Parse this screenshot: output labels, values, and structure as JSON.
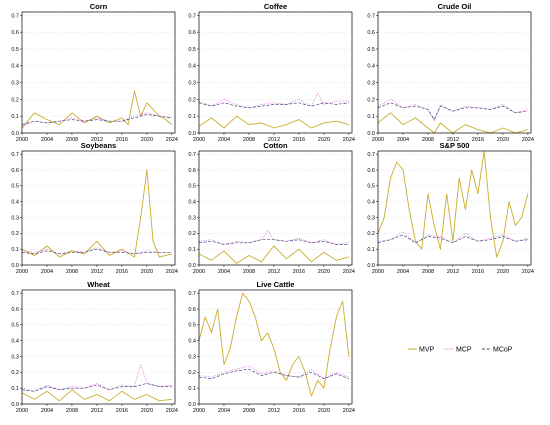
{
  "chart_data": {
    "type": "line",
    "x_ticks": [
      "2000",
      "2004",
      "2008",
      "2012",
      "2016",
      "2020",
      "2024"
    ],
    "xlim": [
      2000,
      2024.5
    ],
    "y_ticks": [
      "0.0",
      "0.1",
      "0.2",
      "0.3",
      "0.4",
      "0.5",
      "0.6",
      "0.7"
    ],
    "ylim": [
      0,
      0.72
    ],
    "grid": true,
    "legend_position": "bottom-right",
    "legend": [
      {
        "key": "mvp",
        "name": "MVP",
        "color": "#c9ad2c",
        "style": "solid"
      },
      {
        "key": "mcp",
        "name": "MCP",
        "color": "#d65fd6",
        "style": "dotted"
      },
      {
        "key": "mcop",
        "name": "MCoP",
        "color": "#4a4a7a",
        "style": "dashed"
      }
    ],
    "panels": [
      {
        "title": "Corn",
        "series": {
          "mvp": {
            "x": [
              2000,
              2002,
              2004,
              2006,
              2008,
              2010,
              2012,
              2014,
              2016,
              2017,
              2018,
              2019,
              2020,
              2022,
              2023,
              2024
            ],
            "y": [
              0.03,
              0.12,
              0.08,
              0.05,
              0.12,
              0.06,
              0.1,
              0.06,
              0.09,
              0.05,
              0.25,
              0.1,
              0.18,
              0.1,
              0.08,
              0.05
            ]
          },
          "mcp": {
            "x": [
              2000,
              2002,
              2004,
              2006,
              2008,
              2010,
              2012,
              2014,
              2016,
              2018,
              2020,
              2022,
              2024
            ],
            "y": [
              0.04,
              0.07,
              0.06,
              0.07,
              0.09,
              0.07,
              0.09,
              0.07,
              0.07,
              0.1,
              0.12,
              0.1,
              0.09
            ]
          },
          "mcop": {
            "x": [
              2000,
              2002,
              2004,
              2006,
              2008,
              2010,
              2012,
              2014,
              2016,
              2018,
              2020,
              2022,
              2024
            ],
            "y": [
              0.05,
              0.07,
              0.06,
              0.07,
              0.08,
              0.07,
              0.08,
              0.07,
              0.07,
              0.09,
              0.11,
              0.1,
              0.09
            ]
          }
        }
      },
      {
        "title": "Coffee",
        "series": {
          "mvp": {
            "x": [
              2000,
              2002,
              2004,
              2006,
              2008,
              2010,
              2012,
              2014,
              2016,
              2018,
              2020,
              2022,
              2024
            ],
            "y": [
              0.04,
              0.09,
              0.03,
              0.1,
              0.05,
              0.06,
              0.03,
              0.05,
              0.08,
              0.03,
              0.06,
              0.07,
              0.05
            ]
          },
          "mcp": {
            "x": [
              2000,
              2002,
              2004,
              2006,
              2008,
              2010,
              2012,
              2014,
              2016,
              2018,
              2019,
              2020,
              2022,
              2024
            ],
            "y": [
              0.19,
              0.16,
              0.2,
              0.17,
              0.15,
              0.17,
              0.18,
              0.17,
              0.2,
              0.16,
              0.24,
              0.17,
              0.19,
              0.19
            ]
          },
          "mcop": {
            "x": [
              2000,
              2002,
              2004,
              2006,
              2008,
              2010,
              2012,
              2014,
              2016,
              2018,
              2020,
              2022,
              2024
            ],
            "y": [
              0.18,
              0.16,
              0.18,
              0.16,
              0.15,
              0.16,
              0.17,
              0.17,
              0.18,
              0.16,
              0.18,
              0.17,
              0.18
            ]
          }
        }
      },
      {
        "title": "Crude Oil",
        "series": {
          "mvp": {
            "x": [
              2000,
              2002,
              2004,
              2006,
              2008,
              2009,
              2010,
              2012,
              2014,
              2016,
              2018,
              2020,
              2022,
              2024
            ],
            "y": [
              0.06,
              0.12,
              0.05,
              0.09,
              0.03,
              0.0,
              0.06,
              0.0,
              0.05,
              0.02,
              0.0,
              0.03,
              0.0,
              0.02
            ]
          },
          "mcp": {
            "x": [
              2000,
              2002,
              2004,
              2006,
              2008,
              2009,
              2010,
              2012,
              2014,
              2016,
              2018,
              2020,
              2022,
              2024
            ],
            "y": [
              0.16,
              0.2,
              0.15,
              0.17,
              0.14,
              0.07,
              0.17,
              0.13,
              0.16,
              0.15,
              0.14,
              0.17,
              0.12,
              0.14
            ]
          },
          "mcop": {
            "x": [
              2000,
              2002,
              2004,
              2006,
              2008,
              2009,
              2010,
              2012,
              2014,
              2016,
              2018,
              2020,
              2022,
              2024
            ],
            "y": [
              0.15,
              0.18,
              0.15,
              0.16,
              0.14,
              0.08,
              0.16,
              0.13,
              0.15,
              0.15,
              0.14,
              0.16,
              0.12,
              0.13
            ]
          }
        }
      },
      {
        "title": "Soybeans",
        "series": {
          "mvp": {
            "x": [
              2000,
              2002,
              2004,
              2006,
              2008,
              2010,
              2012,
              2014,
              2016,
              2018,
              2019,
              2020,
              2021,
              2022,
              2024
            ],
            "y": [
              0.1,
              0.06,
              0.12,
              0.05,
              0.09,
              0.07,
              0.15,
              0.06,
              0.1,
              0.05,
              0.3,
              0.6,
              0.15,
              0.05,
              0.07
            ]
          },
          "mcp": {
            "x": [
              2000,
              2002,
              2004,
              2006,
              2008,
              2010,
              2012,
              2014,
              2016,
              2018,
              2020,
              2022,
              2024
            ],
            "y": [
              0.09,
              0.08,
              0.1,
              0.07,
              0.09,
              0.08,
              0.11,
              0.08,
              0.09,
              0.07,
              0.09,
              0.08,
              0.08
            ]
          },
          "mcop": {
            "x": [
              2000,
              2002,
              2004,
              2006,
              2008,
              2010,
              2012,
              2014,
              2016,
              2018,
              2020,
              2022,
              2024
            ],
            "y": [
              0.08,
              0.07,
              0.09,
              0.07,
              0.08,
              0.08,
              0.1,
              0.08,
              0.08,
              0.07,
              0.08,
              0.08,
              0.08
            ]
          }
        }
      },
      {
        "title": "Cotton",
        "series": {
          "mvp": {
            "x": [
              2000,
              2002,
              2004,
              2006,
              2008,
              2010,
              2012,
              2014,
              2016,
              2018,
              2020,
              2022,
              2024
            ],
            "y": [
              0.07,
              0.03,
              0.09,
              0.01,
              0.06,
              0.02,
              0.12,
              0.04,
              0.1,
              0.02,
              0.08,
              0.03,
              0.05
            ]
          },
          "mcp": {
            "x": [
              2000,
              2002,
              2004,
              2006,
              2008,
              2010,
              2011,
              2012,
              2014,
              2016,
              2018,
              2020,
              2022,
              2024
            ],
            "y": [
              0.15,
              0.16,
              0.13,
              0.15,
              0.14,
              0.16,
              0.22,
              0.16,
              0.15,
              0.17,
              0.14,
              0.16,
              0.13,
              0.14
            ]
          },
          "mcop": {
            "x": [
              2000,
              2002,
              2004,
              2006,
              2008,
              2010,
              2012,
              2014,
              2016,
              2018,
              2020,
              2022,
              2024
            ],
            "y": [
              0.14,
              0.15,
              0.13,
              0.14,
              0.14,
              0.16,
              0.16,
              0.15,
              0.16,
              0.14,
              0.15,
              0.13,
              0.13
            ]
          }
        }
      },
      {
        "title": "S&P 500",
        "series": {
          "mvp": {
            "x": [
              2000,
              2001,
              2002,
              2003,
              2004,
              2005,
              2006,
              2007,
              2008,
              2009,
              2010,
              2011,
              2012,
              2013,
              2014,
              2015,
              2016,
              2017,
              2018,
              2019,
              2020,
              2021,
              2022,
              2023,
              2024
            ],
            "y": [
              0.2,
              0.3,
              0.55,
              0.65,
              0.6,
              0.35,
              0.15,
              0.1,
              0.45,
              0.25,
              0.1,
              0.45,
              0.15,
              0.55,
              0.35,
              0.6,
              0.45,
              0.72,
              0.3,
              0.05,
              0.15,
              0.4,
              0.25,
              0.3,
              0.45
            ]
          },
          "mcp": {
            "x": [
              2000,
              2002,
              2004,
              2006,
              2008,
              2010,
              2012,
              2014,
              2016,
              2018,
              2020,
              2022,
              2024
            ],
            "y": [
              0.15,
              0.16,
              0.21,
              0.14,
              0.19,
              0.18,
              0.14,
              0.2,
              0.15,
              0.17,
              0.19,
              0.15,
              0.17
            ]
          },
          "mcop": {
            "x": [
              2000,
              2002,
              2004,
              2006,
              2008,
              2010,
              2012,
              2014,
              2016,
              2018,
              2020,
              2022,
              2024
            ],
            "y": [
              0.14,
              0.16,
              0.19,
              0.14,
              0.18,
              0.17,
              0.14,
              0.18,
              0.15,
              0.16,
              0.18,
              0.15,
              0.16
            ]
          }
        }
      },
      {
        "title": "Wheat",
        "series": {
          "mvp": {
            "x": [
              2000,
              2002,
              2004,
              2006,
              2008,
              2010,
              2012,
              2014,
              2016,
              2018,
              2020,
              2022,
              2024
            ],
            "y": [
              0.07,
              0.03,
              0.08,
              0.02,
              0.09,
              0.03,
              0.06,
              0.02,
              0.08,
              0.03,
              0.06,
              0.02,
              0.03
            ]
          },
          "mcp": {
            "x": [
              2000,
              2002,
              2004,
              2006,
              2008,
              2010,
              2012,
              2014,
              2016,
              2018,
              2019,
              2020,
              2022,
              2024
            ],
            "y": [
              0.1,
              0.08,
              0.12,
              0.09,
              0.11,
              0.1,
              0.13,
              0.09,
              0.12,
              0.11,
              0.25,
              0.13,
              0.11,
              0.12
            ]
          },
          "mcop": {
            "x": [
              2000,
              2002,
              2004,
              2006,
              2008,
              2010,
              2012,
              2014,
              2016,
              2018,
              2020,
              2022,
              2024
            ],
            "y": [
              0.09,
              0.08,
              0.11,
              0.09,
              0.1,
              0.1,
              0.12,
              0.09,
              0.11,
              0.11,
              0.13,
              0.11,
              0.11
            ]
          }
        }
      },
      {
        "title": "Live Cattle",
        "series": {
          "mvp": {
            "x": [
              2000,
              2001,
              2002,
              2003,
              2004,
              2005,
              2006,
              2007,
              2008,
              2009,
              2010,
              2011,
              2012,
              2013,
              2014,
              2015,
              2016,
              2017,
              2018,
              2019,
              2020,
              2021,
              2022,
              2023,
              2024
            ],
            "y": [
              0.4,
              0.55,
              0.45,
              0.6,
              0.25,
              0.35,
              0.55,
              0.7,
              0.65,
              0.55,
              0.4,
              0.45,
              0.35,
              0.2,
              0.15,
              0.25,
              0.3,
              0.2,
              0.05,
              0.15,
              0.1,
              0.35,
              0.55,
              0.65,
              0.3
            ]
          },
          "mcp": {
            "x": [
              2000,
              2002,
              2004,
              2006,
              2008,
              2010,
              2012,
              2014,
              2016,
              2018,
              2020,
              2022,
              2024
            ],
            "y": [
              0.18,
              0.17,
              0.2,
              0.22,
              0.24,
              0.19,
              0.21,
              0.18,
              0.17,
              0.22,
              0.16,
              0.2,
              0.17
            ]
          },
          "mcop": {
            "x": [
              2000,
              2002,
              2004,
              2006,
              2008,
              2010,
              2012,
              2014,
              2016,
              2018,
              2020,
              2022,
              2024
            ],
            "y": [
              0.17,
              0.16,
              0.19,
              0.21,
              0.22,
              0.18,
              0.2,
              0.18,
              0.17,
              0.2,
              0.16,
              0.19,
              0.16
            ]
          }
        }
      }
    ]
  }
}
